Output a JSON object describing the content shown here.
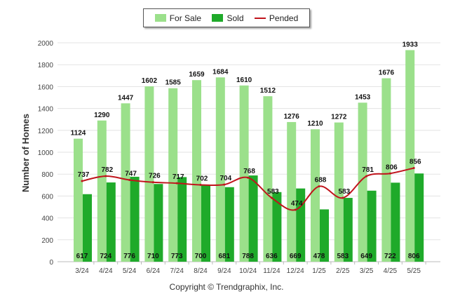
{
  "chart_data": {
    "type": "bar",
    "categories": [
      "3/24",
      "4/24",
      "5/24",
      "6/24",
      "7/24",
      "8/24",
      "9/24",
      "10/24",
      "11/24",
      "12/24",
      "1/25",
      "2/25",
      "3/25",
      "4/25",
      "5/25"
    ],
    "series": [
      {
        "name": "For Sale",
        "kind": "bar",
        "color": "#9be08b",
        "values": [
          1124,
          1290,
          1447,
          1602,
          1585,
          1659,
          1684,
          1610,
          1512,
          1276,
          1210,
          1272,
          1453,
          1676,
          1933
        ]
      },
      {
        "name": "Sold",
        "kind": "bar",
        "color": "#1faa2a",
        "values": [
          617,
          724,
          776,
          710,
          773,
          700,
          681,
          788,
          636,
          669,
          478,
          583,
          649,
          722,
          806
        ]
      },
      {
        "name": "Pended",
        "kind": "line",
        "color": "#c0141c",
        "values": [
          737,
          782,
          747,
          726,
          717,
          702,
          704,
          768,
          583,
          474,
          688,
          583,
          781,
          806,
          856
        ]
      }
    ],
    "ylabel": "Number of Homes",
    "ylim": [
      0,
      2000
    ],
    "yticks": [
      0,
      200,
      400,
      600,
      800,
      1000,
      1200,
      1400,
      1600,
      1800,
      2000
    ],
    "grid": true,
    "legend_position": "top-center"
  },
  "footer": {
    "copyright": "Copyright © Trendgraphix, Inc."
  }
}
